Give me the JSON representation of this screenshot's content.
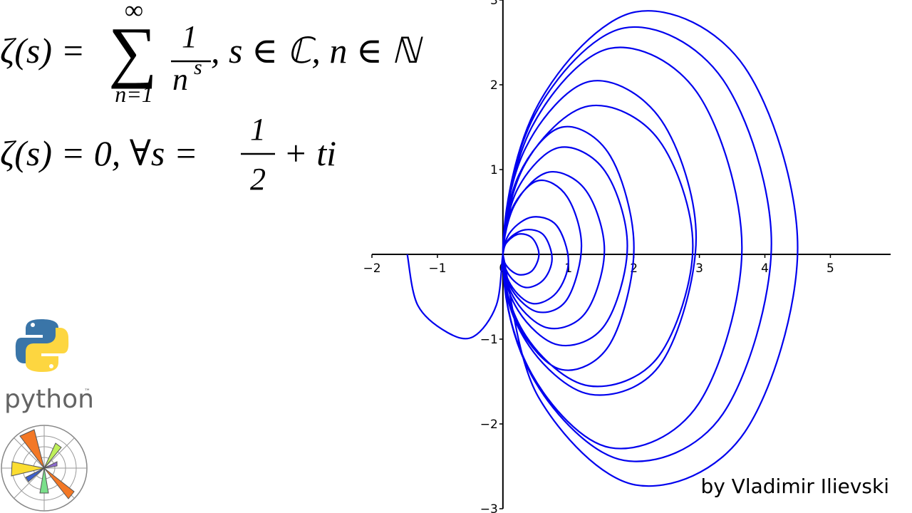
{
  "chart_data": {
    "type": "line",
    "color": "#0000ee",
    "xlim": [
      -2,
      5.92
    ],
    "ylim": [
      -3,
      3
    ],
    "xticks": [
      {
        "value": -2,
        "label": "−2"
      },
      {
        "value": -1,
        "label": "−1"
      },
      0,
      1,
      2,
      3,
      4,
      5
    ],
    "yticks": [
      {
        "value": -3,
        "label": "−3"
      },
      {
        "value": -2,
        "label": "−2"
      },
      {
        "value": -1,
        "label": "−1"
      },
      1,
      2,
      3
    ],
    "x": [
      -1.46,
      -1.3,
      -0.85,
      -0.45,
      -0.1,
      0,
      0.07,
      0.25,
      0.45,
      0.55,
      0.45,
      0.25,
      0.07,
      0,
      0.09,
      0.34,
      0.62,
      0.75,
      0.62,
      0.34,
      0.09,
      0,
      0.12,
      0.45,
      0.82,
      1.0,
      0.82,
      0.45,
      0.12,
      0,
      0.14,
      0.54,
      0.98,
      1.2,
      0.98,
      0.54,
      0.14,
      0,
      0.19,
      0.7,
      1.27,
      1.55,
      1.27,
      0.7,
      0.19,
      0,
      0.23,
      0.86,
      1.56,
      1.9,
      1.56,
      0.86,
      0.23,
      0,
      0.24,
      0.9,
      1.64,
      2.0,
      1.64,
      0.9,
      0.24,
      0,
      0.35,
      1.31,
      2.38,
      2.9,
      2.38,
      1.31,
      0.35,
      0,
      0.35,
      1.33,
      2.42,
      2.95,
      2.42,
      1.33,
      0.35,
      0,
      0.44,
      1.64,
      2.99,
      3.65,
      2.99,
      1.64,
      0.44,
      0,
      0.49,
      1.85,
      3.36,
      4.1,
      3.36,
      1.85,
      0.49,
      0,
      0.54,
      2.03,
      3.69,
      4.5,
      3.69,
      2.03,
      0.54,
      0
    ],
    "values": [
      0,
      -0.6,
      -0.92,
      -0.97,
      -0.6,
      0,
      0.15,
      0.24,
      0.19,
      0,
      -0.19,
      -0.24,
      -0.15,
      0,
      0.18,
      0.29,
      0.23,
      -0.05,
      -0.3,
      -0.39,
      -0.24,
      0,
      0.27,
      0.44,
      0.34,
      -0.08,
      -0.45,
      -0.58,
      -0.36,
      0,
      0.54,
      0.87,
      0.68,
      0.1,
      -0.53,
      -0.68,
      -0.42,
      0,
      0.6,
      0.97,
      0.75,
      0.05,
      -0.68,
      -0.87,
      -0.54,
      0,
      0.78,
      1.26,
      0.98,
      0.1,
      -0.83,
      -1.07,
      -0.66,
      0,
      0.93,
      1.5,
      1.16,
      0.08,
      -1.05,
      -1.36,
      -0.84,
      0,
      1.08,
      1.75,
      1.35,
      0.1,
      -1.2,
      -1.55,
      -0.96,
      0,
      1.26,
      2.04,
      1.58,
      0.2,
      -1.28,
      -1.65,
      -1.02,
      0,
      1.5,
      2.43,
      1.88,
      0.08,
      -1.76,
      -2.28,
      -1.41,
      0,
      1.65,
      2.67,
      2.06,
      0.13,
      -1.88,
      -2.43,
      -1.5,
      0,
      1.77,
      2.86,
      2.21,
      0.08,
      -2.1,
      -2.72,
      -1.68,
      0
    ],
    "formula1": {
      "lhs": "ζ(s) =",
      "sum": "∑",
      "upper": "∞",
      "lower": "n=1",
      "num": "1",
      "den": "n",
      "exp": "s",
      "rest": ", s ∈ ℂ, n ∈ ℕ"
    },
    "formula2": {
      "lhs": "ζ(s) = 0, ∀s =",
      "num": "1",
      "den": "2",
      "rest": "+ ti"
    },
    "python_text": "python",
    "trademark": "™",
    "credit": "by Vladimir Ilievski"
  }
}
